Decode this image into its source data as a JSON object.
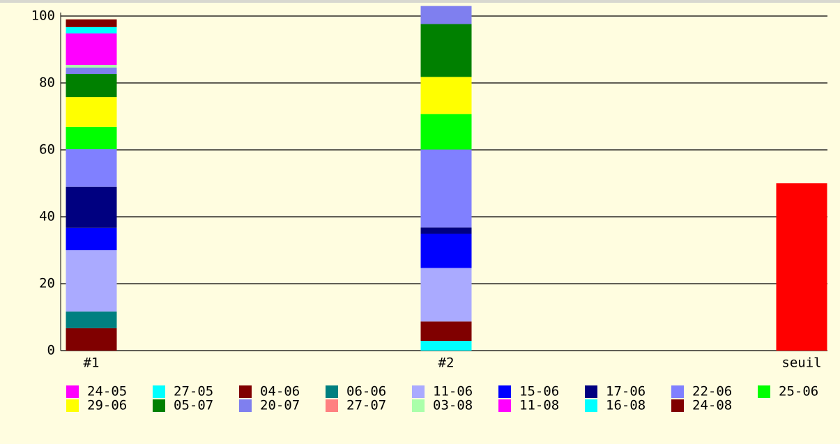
{
  "chart_data": {
    "type": "stacked_bar",
    "categories": [
      "#1",
      "#2",
      "seuil"
    ],
    "series": [
      {
        "name": "24-05",
        "color": "#ff00ff",
        "values": [
          0,
          0,
          null
        ]
      },
      {
        "name": "27-05",
        "color": "#00ffff",
        "values": [
          0,
          2.9,
          null
        ]
      },
      {
        "name": "04-06",
        "color": "#800000",
        "values": [
          6.7,
          5.8,
          null
        ]
      },
      {
        "name": "06-06",
        "color": "#008080",
        "values": [
          5,
          0,
          null
        ]
      },
      {
        "name": "11-06",
        "color": "#aaaaff",
        "values": [
          18.3,
          16,
          null
        ]
      },
      {
        "name": "15-06",
        "color": "#0000ff",
        "values": [
          6.7,
          10.2,
          null
        ]
      },
      {
        "name": "17-06",
        "color": "#000080",
        "values": [
          12.3,
          1.9,
          null
        ]
      },
      {
        "name": "22-06",
        "color": "#8080ff",
        "values": [
          11.2,
          23.3,
          null
        ]
      },
      {
        "name": "25-06",
        "color": "#00ff00",
        "values": [
          6.7,
          10.6,
          null
        ]
      },
      {
        "name": "29-06",
        "color": "#ffff00",
        "values": [
          8.9,
          11.1,
          null
        ]
      },
      {
        "name": "05-07",
        "color": "#008000",
        "values": [
          6.9,
          15.8,
          null
        ]
      },
      {
        "name": "20-07",
        "color": "#7f7fef",
        "values": [
          1.9,
          5.4,
          null
        ]
      },
      {
        "name": "27-07",
        "color": "#ff8080",
        "values": [
          0,
          0,
          null
        ]
      },
      {
        "name": "03-08",
        "color": "#aaffaa",
        "values": [
          0.8,
          0,
          null
        ]
      },
      {
        "name": "11-08",
        "color": "#ff00ff",
        "values": [
          9.4,
          0,
          null
        ]
      },
      {
        "name": "16-08",
        "color": "#00ffff",
        "values": [
          1.9,
          0,
          null
        ]
      },
      {
        "name": "24-08",
        "color": "#800000",
        "values": [
          2.3,
          0,
          null
        ]
      }
    ],
    "threshold": {
      "color": "#ff0000",
      "values": [
        null,
        null,
        50
      ]
    },
    "ylim": [
      0,
      100
    ],
    "yticks": [
      0,
      20,
      40,
      60,
      80,
      100
    ],
    "grid": true
  }
}
